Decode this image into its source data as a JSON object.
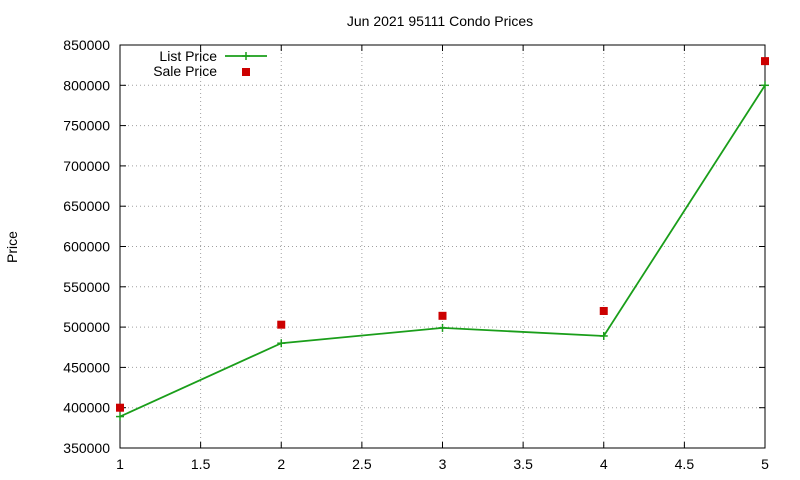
{
  "chart_data": {
    "type": "line",
    "title": "Jun 2021 95111 Condo Prices",
    "xlabel": "",
    "ylabel": "Price",
    "xlim": [
      1,
      5
    ],
    "ylim": [
      350000,
      850000
    ],
    "xticks": [
      1,
      1.5,
      2,
      2.5,
      3,
      3.5,
      4,
      4.5,
      5
    ],
    "xtick_labels": [
      "1",
      "1.5",
      "2",
      "2.5",
      "3",
      "3.5",
      "4",
      "4.5",
      "5"
    ],
    "yticks": [
      350000,
      400000,
      450000,
      500000,
      550000,
      600000,
      650000,
      700000,
      750000,
      800000,
      850000
    ],
    "ytick_labels": [
      "350000",
      "400000",
      "450000",
      "500000",
      "550000",
      "600000",
      "650000",
      "700000",
      "750000",
      "800000",
      "850000"
    ],
    "grid": true,
    "legend_position": "top-left",
    "series": [
      {
        "name": "List Price",
        "style": "lines-points",
        "marker": "plus",
        "color": "#1a9e1a",
        "x": [
          1,
          2,
          3,
          4,
          5
        ],
        "y": [
          389000,
          480000,
          499000,
          489000,
          800000
        ]
      },
      {
        "name": "Sale Price",
        "style": "points",
        "marker": "square",
        "color": "#cc0000",
        "x": [
          1,
          2,
          3,
          4,
          5
        ],
        "y": [
          400000,
          503000,
          514000,
          520000,
          830000
        ]
      }
    ]
  }
}
